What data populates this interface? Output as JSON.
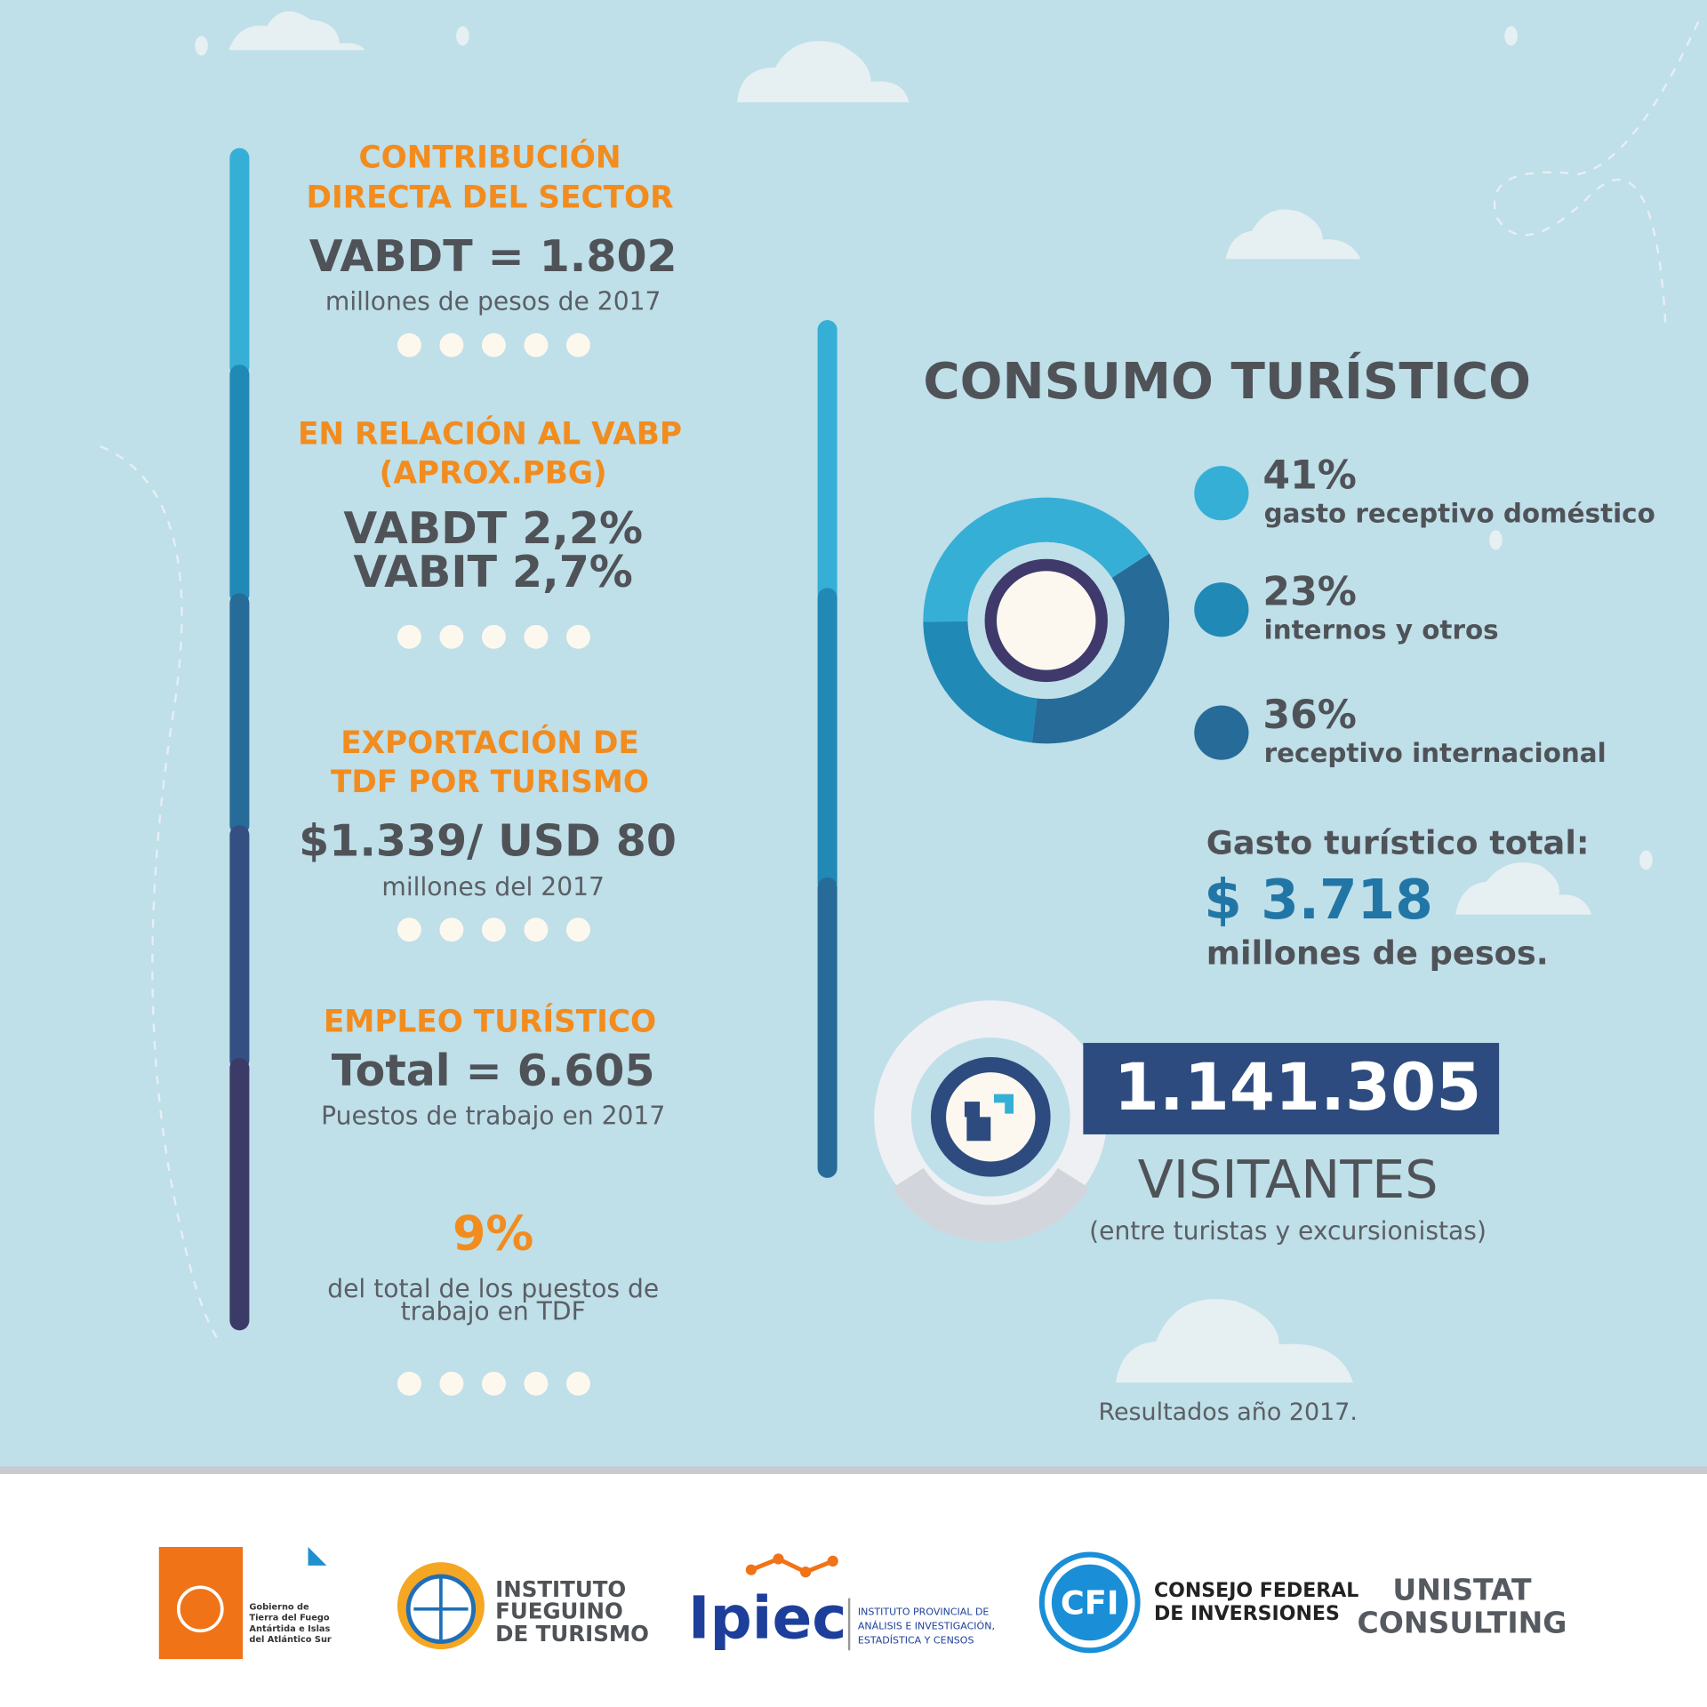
{
  "left": {
    "sections": [
      {
        "heading": [
          "CONTRIBUCIÓN",
          "DIRECTA DEL SECTOR"
        ],
        "value": [
          "VABDT = 1.802"
        ],
        "note": "millones de pesos de 2017"
      },
      {
        "heading": [
          "EN RELACIÓN AL VABP",
          "(APROX.PBG)"
        ],
        "value": [
          "VABDT 2,2%",
          "VABIT 2,7%"
        ]
      },
      {
        "heading": [
          "EXPORTACIÓN DE",
          "TDF POR TURISMO"
        ],
        "value": [
          "$1.339/ USD 80"
        ],
        "note": "millones del 2017"
      },
      {
        "heading": [
          "EMPLEO TURÍSTICO"
        ],
        "value": [
          "Total = 6.605"
        ],
        "note": "Puestos de trabajo en 2017"
      },
      {
        "value": [
          "9%"
        ],
        "note_lines": [
          "del total de los puestos de",
          "trabajo en TDF"
        ]
      }
    ]
  },
  "consumo": {
    "title": "CONSUMO TURÍSTICO",
    "items": [
      {
        "value": 41,
        "label": "41%",
        "text": "gasto receptivo doméstico",
        "color": "#36afd6"
      },
      {
        "value": 23,
        "label": "23%",
        "text": "internos y otros",
        "color": "#2089b6"
      },
      {
        "value": 36,
        "label": "36%",
        "text": "receptivo internacional",
        "color": "#276b98"
      }
    ],
    "gasto": {
      "label": "Gasto turístico total:",
      "value": "$ 3.718",
      "unit": "millones de pesos."
    }
  },
  "visitantes": {
    "value": "1.141.305",
    "label": "VISITANTES",
    "note": "(entre turistas y excursionistas)"
  },
  "footnote": "Resultados año 2017.",
  "logos": {
    "gobierno": [
      "Gobierno de",
      "Tierra del Fuego",
      "Antártida e Islas",
      "del Atlántico Sur"
    ],
    "instituto": [
      "INSTITUTO",
      "FUEGUINO",
      "DE TURISMO"
    ],
    "ipiec": {
      "name": "Ipiec",
      "lines": [
        "INSTITUTO PROVINCIAL DE",
        "ANÁLISIS E INVESTIGACIÓN,",
        "ESTADÍSTICA Y CENSOS"
      ]
    },
    "cfi": {
      "name": "CFI",
      "lines": [
        "CONSEJO FEDERAL",
        "DE INVERSIONES"
      ]
    },
    "unistat": [
      "UNISTAT",
      "CONSULTING"
    ]
  }
}
